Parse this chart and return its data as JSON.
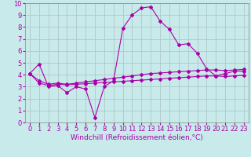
{
  "xlabel": "Windchill (Refroidissement éolien,°C)",
  "ylabel": "",
  "xlim": [
    -0.5,
    23.5
  ],
  "ylim": [
    0,
    10
  ],
  "xticks": [
    0,
    1,
    2,
    3,
    4,
    5,
    6,
    7,
    8,
    9,
    10,
    11,
    12,
    13,
    14,
    15,
    16,
    17,
    18,
    19,
    20,
    21,
    22,
    23
  ],
  "yticks": [
    0,
    1,
    2,
    3,
    4,
    5,
    6,
    7,
    8,
    9,
    10
  ],
  "bg_color": "#c8eaea",
  "line_color": "#aa00aa",
  "grid_color": "#b0c8c8",
  "line1_x": [
    0,
    1,
    2,
    3,
    4,
    5,
    6,
    7,
    8,
    9,
    10,
    11,
    12,
    13,
    14,
    15,
    16,
    17,
    18,
    19,
    20,
    21,
    22,
    23
  ],
  "line1_y": [
    4.1,
    4.9,
    3.0,
    3.1,
    2.5,
    3.0,
    2.8,
    0.4,
    3.0,
    3.5,
    7.9,
    9.0,
    9.6,
    9.7,
    8.5,
    7.8,
    6.5,
    6.6,
    5.8,
    4.5,
    3.9,
    4.1,
    4.3,
    4.3
  ],
  "line2_x": [
    0,
    1,
    2,
    3,
    4,
    5,
    6,
    7,
    8,
    9,
    10,
    11,
    12,
    13,
    14,
    15,
    16,
    17,
    18,
    19,
    20,
    21,
    22,
    23
  ],
  "line2_y": [
    4.1,
    3.5,
    3.2,
    3.3,
    3.2,
    3.3,
    3.4,
    3.5,
    3.6,
    3.7,
    3.8,
    3.9,
    4.0,
    4.1,
    4.15,
    4.2,
    4.25,
    4.3,
    4.35,
    4.4,
    4.4,
    4.35,
    4.4,
    4.45
  ],
  "line3_x": [
    0,
    1,
    2,
    3,
    4,
    5,
    6,
    7,
    8,
    9,
    10,
    11,
    12,
    13,
    14,
    15,
    16,
    17,
    18,
    19,
    20,
    21,
    22,
    23
  ],
  "line3_y": [
    4.1,
    3.3,
    3.1,
    3.2,
    3.15,
    3.2,
    3.25,
    3.3,
    3.35,
    3.4,
    3.45,
    3.5,
    3.55,
    3.6,
    3.65,
    3.7,
    3.75,
    3.8,
    3.85,
    3.9,
    3.9,
    3.85,
    3.9,
    3.95
  ],
  "tick_fontsize": 6,
  "label_fontsize": 6.5,
  "figsize": [
    3.2,
    2.0
  ],
  "dpi": 100
}
